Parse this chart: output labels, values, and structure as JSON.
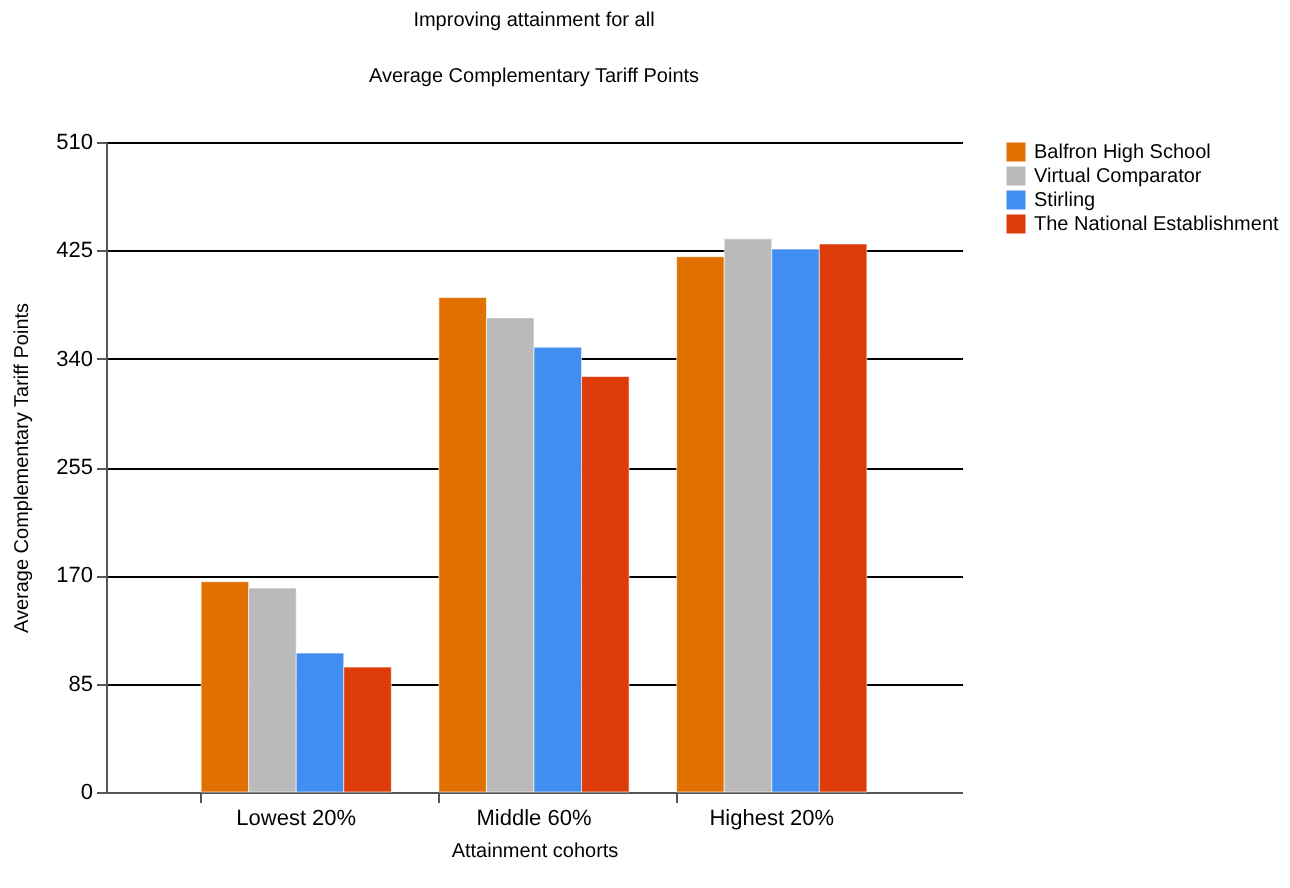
{
  "chart_data": {
    "type": "bar",
    "title": "Improving attainment for all",
    "subtitle": "Average Complementary Tariff Points",
    "xlabel": "Attainment cohorts",
    "ylabel": "Average Complementary Tariff Points",
    "categories": [
      "Lowest 20%",
      "Middle 60%",
      "Highest 20%"
    ],
    "series": [
      {
        "name": "Balfron High School",
        "color": "#e07000",
        "values": [
          165,
          388,
          420
        ]
      },
      {
        "name": "Virtual Comparator",
        "color": "#bababa",
        "values": [
          160,
          372,
          434
        ]
      },
      {
        "name": "Stirling",
        "color": "#3f8ef0",
        "values": [
          109,
          349,
          426
        ]
      },
      {
        "name": "The National Establishment",
        "color": "#dd3c0a",
        "values": [
          98,
          326,
          430
        ]
      }
    ],
    "ylim": [
      0,
      510
    ],
    "yticks": [
      0,
      85,
      170,
      255,
      340,
      425,
      510
    ],
    "grid": "y",
    "legend": "top right"
  }
}
